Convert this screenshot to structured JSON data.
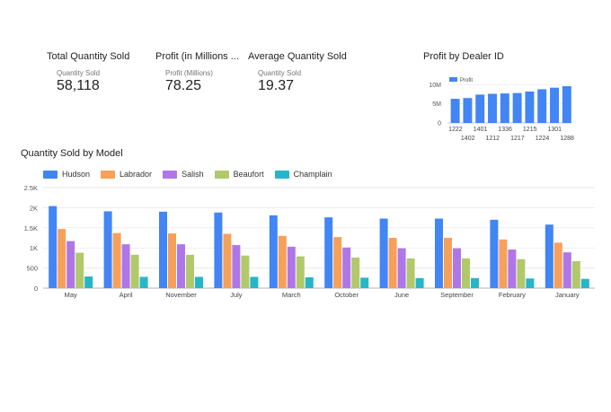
{
  "kpis": [
    {
      "title": "Total Quantity Sold",
      "subtitle": "Quantity Sold",
      "value": "58,118"
    },
    {
      "title": "Profit (in Millions ...",
      "subtitle": "Profit (Millions)",
      "value": "78.25"
    },
    {
      "title": "Average Quantity Sold",
      "subtitle": "Quantity Sold",
      "value": "19.37"
    }
  ],
  "profit_chart": {
    "title": "Profit by Dealer ID",
    "legend": "Profit",
    "color": "#4285f4"
  },
  "quantity_chart": {
    "title": "Quantity Sold by Model",
    "colors": [
      "#4285f4",
      "#f6a05a",
      "#af76e8",
      "#b1c96b",
      "#26b6c7"
    ]
  },
  "chart_data": [
    {
      "type": "bar",
      "title": "Profit by Dealer ID",
      "categories": [
        "1222",
        "1402",
        "1401",
        "1212",
        "1336",
        "1217",
        "1215",
        "1224",
        "1301",
        "1288"
      ],
      "series": [
        {
          "name": "Profit",
          "values": [
            6.3,
            6.5,
            7.4,
            7.6,
            7.7,
            7.8,
            8.2,
            8.8,
            9.2,
            9.6
          ]
        }
      ],
      "yticks": [
        "0",
        "5M",
        "10M"
      ],
      "ylim": [
        0,
        11
      ],
      "legend": "top-left"
    },
    {
      "type": "bar",
      "title": "Quantity Sold by Model",
      "categories": [
        "May",
        "April",
        "November",
        "July",
        "March",
        "October",
        "June",
        "September",
        "February",
        "January"
      ],
      "series": [
        {
          "name": "Hudson",
          "values": [
            2040,
            1910,
            1900,
            1880,
            1810,
            1760,
            1730,
            1730,
            1700,
            1580
          ]
        },
        {
          "name": "Labrador",
          "values": [
            1470,
            1370,
            1360,
            1350,
            1300,
            1270,
            1250,
            1250,
            1210,
            1130
          ]
        },
        {
          "name": "Salish",
          "values": [
            1170,
            1090,
            1090,
            1070,
            1030,
            1010,
            990,
            990,
            960,
            890
          ]
        },
        {
          "name": "Beaufort",
          "values": [
            880,
            830,
            830,
            810,
            790,
            760,
            740,
            740,
            720,
            670
          ]
        },
        {
          "name": "Champlain",
          "values": [
            290,
            280,
            280,
            280,
            270,
            260,
            250,
            250,
            240,
            230
          ]
        }
      ],
      "yticks": [
        "0",
        "500",
        "1K",
        "1.5K",
        "2K",
        "2.5K"
      ],
      "ylim": [
        0,
        2500
      ],
      "grid": true,
      "legend": "top-left"
    }
  ]
}
